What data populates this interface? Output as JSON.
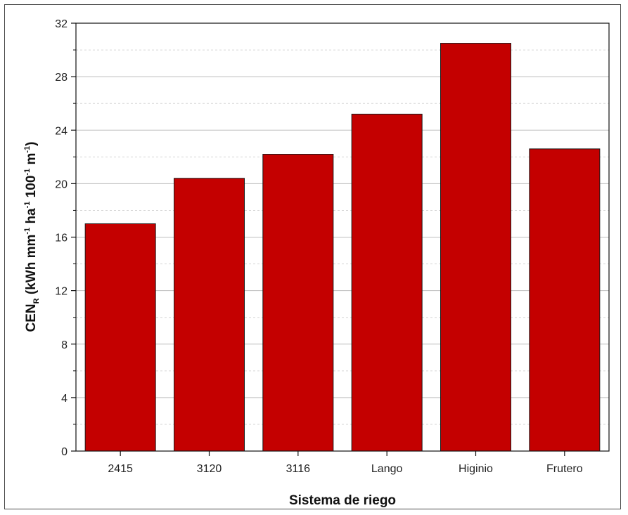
{
  "chart_data": {
    "type": "bar",
    "categories": [
      "2415",
      "3120",
      "3116",
      "Lango",
      "Higinio",
      "Frutero"
    ],
    "values": [
      17.0,
      20.4,
      22.2,
      25.2,
      30.5,
      22.6
    ],
    "xlabel": "Sistema de riego",
    "ylabel": {
      "base": "CEN",
      "base_sub": "R",
      "unit_open": " (kWh mm",
      "exp1": "-1",
      "part2": " ha",
      "exp2": "-1",
      "part3": " 100",
      "exp3": "-1",
      "part4": " m",
      "exp4": "-1",
      "close": ")"
    },
    "ylim": [
      0,
      32
    ],
    "yticks": [
      0,
      4,
      8,
      12,
      16,
      20,
      24,
      28,
      32
    ],
    "ytick_labels": [
      "0",
      "4",
      "8",
      "12",
      "16",
      "20",
      "24",
      "28",
      "32"
    ],
    "grid": true,
    "bar_color": "#c40000"
  }
}
